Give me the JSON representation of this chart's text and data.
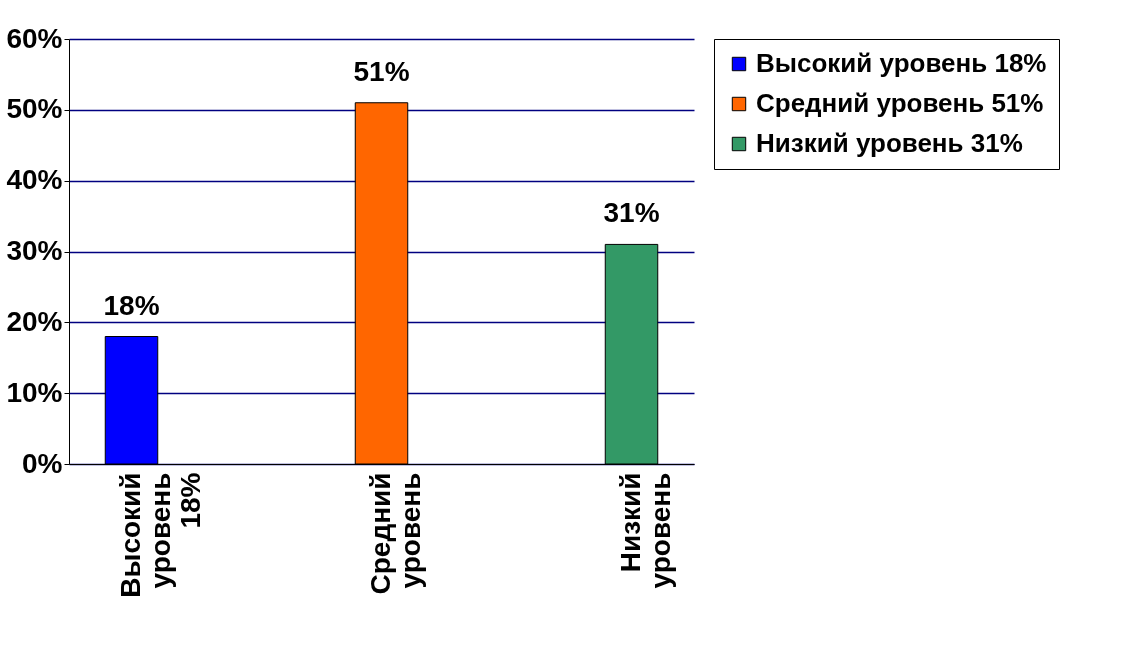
{
  "chart_data": {
    "type": "bar",
    "categories": [
      "Высокий уровень 18%",
      null,
      "Средний уровень",
      null,
      "Низкий уровень"
    ],
    "series": [
      {
        "name": "Высокий уровень 18%",
        "color": "#0000ff",
        "values": [
          18,
          null,
          null,
          null,
          null
        ],
        "value_labels": [
          "18%",
          null,
          null,
          null,
          null
        ]
      },
      {
        "name": "Средний уровень 51%",
        "color": "#ff6600",
        "values": [
          null,
          null,
          51,
          null,
          null
        ],
        "value_labels": [
          null,
          null,
          "51%",
          null,
          null
        ]
      },
      {
        "name": "Низкий уровень 31%",
        "color": "#339966",
        "values": [
          null,
          null,
          null,
          null,
          31
        ],
        "value_labels": [
          null,
          null,
          null,
          null,
          "31%"
        ]
      }
    ],
    "ylim": [
      0,
      60
    ],
    "yticks": [
      {
        "value": 0,
        "label": "0%"
      },
      {
        "value": 10,
        "label": "10%"
      },
      {
        "value": 20,
        "label": "20%"
      },
      {
        "value": 30,
        "label": "30%"
      },
      {
        "value": 40,
        "label": "40%"
      },
      {
        "value": 50,
        "label": "50%"
      },
      {
        "value": 60,
        "label": "60%"
      }
    ],
    "grid": "y",
    "legend": "right"
  }
}
